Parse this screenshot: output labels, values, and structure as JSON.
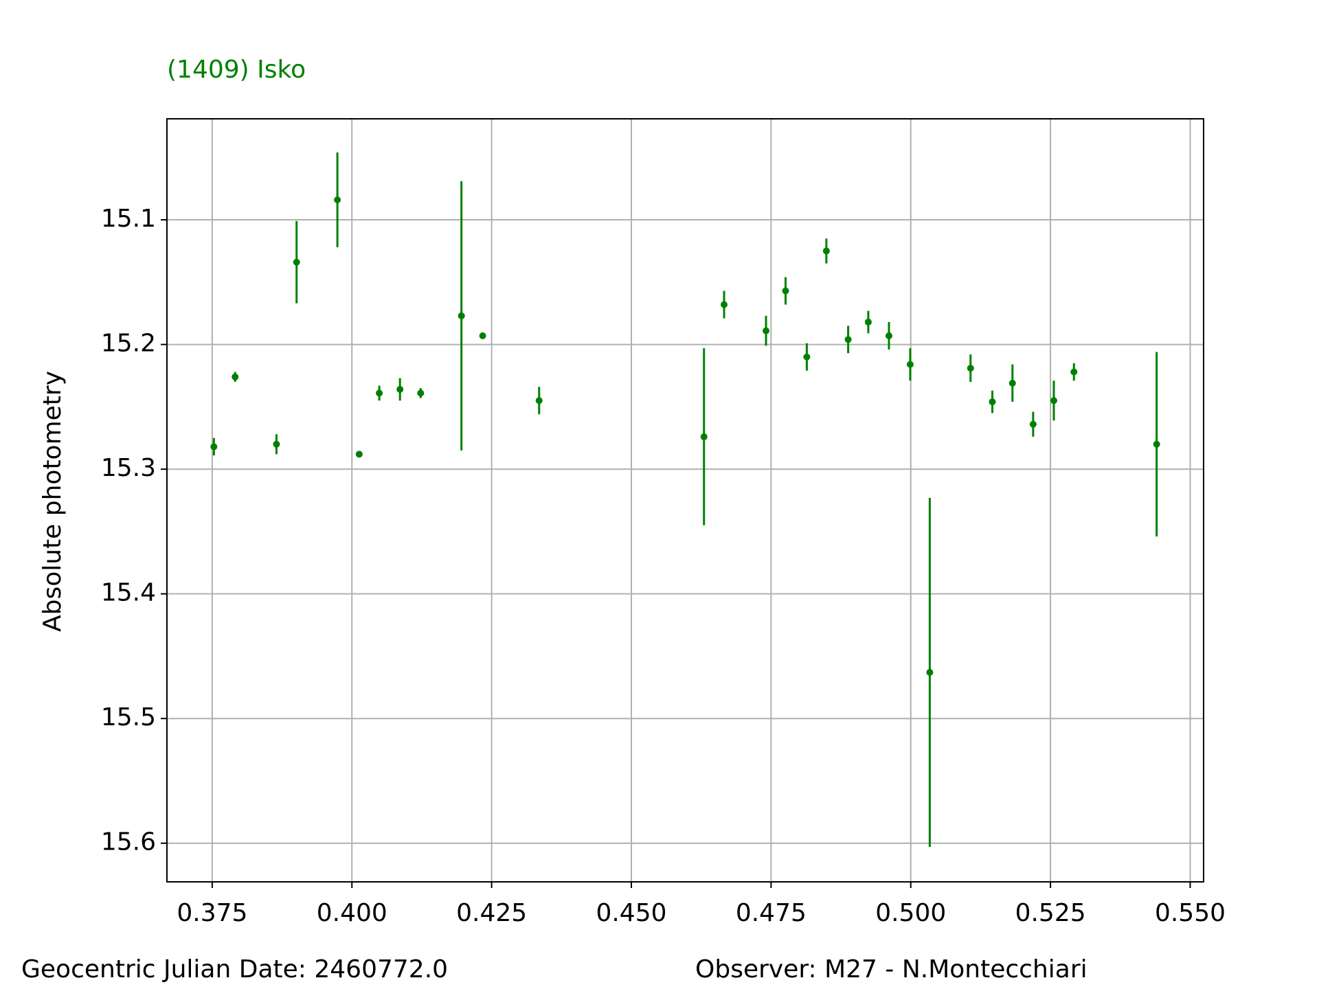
{
  "chart_data": {
    "type": "errorbar",
    "title": "(1409) Isko",
    "y_label": "Absolute photometry",
    "footer_left": "Geocentric Julian Date: 2460772.0",
    "footer_right": "Observer: M27 - N.Montecchiari",
    "color": "#008000",
    "grid": true,
    "y_inverted": true,
    "xlim": [
      0.3669,
      0.5524
    ],
    "ylim": [
      15.019,
      15.631
    ],
    "xticks": [
      0.375,
      {
        "value": 0.4,
        "label": "0.400"
      },
      0.425,
      {
        "value": 0.45,
        "label": "0.450"
      },
      0.475,
      {
        "value": 0.5,
        "label": "0.500"
      },
      0.525,
      {
        "value": 0.55,
        "label": "0.550"
      }
    ],
    "yticks": [
      15.1,
      15.2,
      15.3,
      15.4,
      15.5,
      15.6
    ],
    "x": [
      0.3753,
      0.3791,
      0.3865,
      0.3901,
      0.3974,
      0.4013,
      0.4049,
      0.4086,
      0.4123,
      0.4196,
      0.4234,
      0.4335,
      0.463,
      0.4666,
      0.4741,
      0.4776,
      0.4814,
      0.4849,
      0.4888,
      0.4924,
      0.4961,
      0.4999,
      0.5034,
      0.5107,
      0.5146,
      0.5182,
      0.5219,
      0.5256,
      0.5292,
      0.544
    ],
    "values": [
      15.282,
      15.226,
      15.28,
      15.134,
      15.084,
      15.288,
      15.239,
      15.236,
      15.239,
      15.177,
      15.193,
      15.245,
      15.274,
      15.168,
      15.189,
      15.157,
      15.21,
      15.125,
      15.196,
      15.182,
      15.193,
      15.216,
      15.463,
      15.219,
      15.246,
      15.231,
      15.264,
      15.245,
      15.222,
      15.28
    ],
    "errors": [
      0.007,
      0.004,
      0.008,
      0.033,
      0.038,
      0.002,
      0.006,
      0.009,
      0.004,
      0.108,
      0.002,
      0.011,
      0.071,
      0.011,
      0.012,
      0.011,
      0.011,
      0.01,
      0.011,
      0.009,
      0.011,
      0.013,
      0.14,
      0.011,
      0.009,
      0.015,
      0.01,
      0.016,
      0.007,
      0.074
    ]
  }
}
